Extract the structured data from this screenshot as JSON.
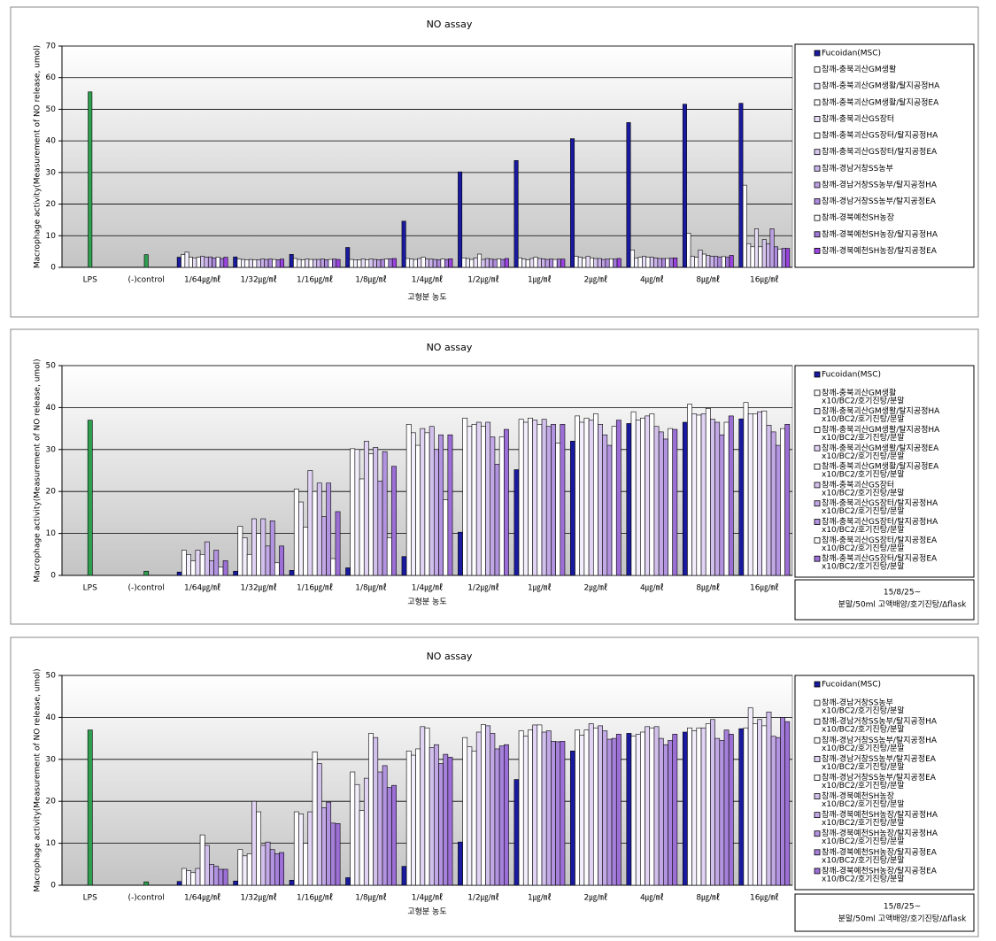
{
  "chart_data": [
    {
      "type": "bar",
      "title": "NO assay",
      "xlabel": "고형분 농도",
      "ylabel": "Macrophage activity(Measurement of NO release, umol)",
      "categories": [
        "LPS",
        "(-)control",
        "1/64㎍/㎖",
        "1/32㎍/㎖",
        "1/16㎍/㎖",
        "1/8㎍/㎖",
        "1/4㎍/㎖",
        "1/2㎍/㎖",
        "1㎍/㎖",
        "2㎍/㎖",
        "4㎍/㎖",
        "8㎍/㎖",
        "16㎍/㎖"
      ],
      "ylim": [
        0,
        70
      ],
      "yticks": [
        0,
        10,
        20,
        30,
        40,
        50,
        60,
        70
      ],
      "grid": true,
      "series": [
        {
          "color": "#2e9e4f",
          "values": [
            55.5,
            4,
            null,
            null,
            null,
            null,
            null,
            null,
            null,
            null,
            null,
            null,
            null
          ]
        },
        {
          "name": "Fucoidan(MSC)",
          "color": "#1a1aa0",
          "values": [
            null,
            null,
            3.2,
            3.3,
            4.1,
            6.3,
            14.6,
            30.2,
            33.8,
            40.7,
            45.8,
            51.6,
            51.9
          ]
        },
        {
          "name": "참깨-충북괴산GM생활",
          "color": "#ffffff",
          "values": [
            null,
            null,
            4,
            2.6,
            2.8,
            2.5,
            2.8,
            3,
            3,
            3.5,
            5.5,
            10.8,
            26
          ]
        },
        {
          "name": "참깨-충북괴산GM생활/탈지공정HA",
          "color": "#f3eefb",
          "values": [
            null,
            null,
            4.8,
            2.5,
            2.5,
            2.4,
            2.6,
            2.8,
            2.6,
            3.2,
            3,
            3.5,
            7.5
          ]
        },
        {
          "name": "참깨-충북괴산GM생활/탈지공정EA",
          "color": "#ffffff",
          "values": [
            null,
            null,
            3.2,
            2.4,
            2.4,
            2.3,
            2.5,
            2.5,
            2.4,
            3,
            3.2,
            3.2,
            6.5
          ]
        },
        {
          "name": "참깨-충북괴산GS장터",
          "color": "#e6dcf5",
          "values": [
            null,
            null,
            3,
            2.5,
            2.6,
            2.6,
            2.8,
            3,
            2.8,
            3.5,
            3.5,
            5.5,
            12.2
          ]
        },
        {
          "name": "참깨-충북괴산GS장터/탈지공정HA",
          "color": "#ffffff",
          "values": [
            null,
            null,
            3.2,
            2.4,
            2.5,
            2.4,
            3.2,
            4.2,
            3.2,
            3,
            3.2,
            4.2,
            6.5
          ]
        },
        {
          "name": "참깨-충북괴산GS장터/탈지공정EA",
          "color": "#d6c6ee",
          "values": [
            null,
            null,
            3.5,
            2.4,
            2.5,
            2.6,
            2.6,
            2.5,
            2.8,
            2.8,
            3.2,
            3.8,
            8.8
          ]
        },
        {
          "name": "참깨-경남거창SS농부",
          "color": "#c9b3e8",
          "values": [
            null,
            null,
            3.2,
            2.6,
            2.5,
            2.5,
            2.6,
            2.8,
            2.7,
            2.8,
            3,
            3.5,
            7.5
          ]
        },
        {
          "name": "참깨-경남거창SS농부/탈지공정HA",
          "color": "#bb9fe2",
          "values": [
            null,
            null,
            3.3,
            2.5,
            2.6,
            2.4,
            2.5,
            2.6,
            2.5,
            2.5,
            2.8,
            3.5,
            12.2
          ]
        },
        {
          "name": "참깨-경남거창SS농부/탈지공정EA",
          "color": "#ad8bdc",
          "values": [
            null,
            null,
            3,
            2.6,
            2.4,
            2.5,
            2.4,
            2.5,
            2.6,
            2.6,
            2.8,
            3.3,
            6.5
          ]
        },
        {
          "name": "참깨-경북예천SH농장",
          "color": "#ffffff",
          "values": [
            null,
            null,
            3.2,
            2.5,
            2.5,
            2.6,
            2.6,
            2.7,
            2.5,
            2.7,
            2.8,
            3.4,
            5.8
          ]
        },
        {
          "name": "참깨-경북예천SH농장/탈지공정HA",
          "color": "#9f77d6",
          "values": [
            null,
            null,
            2.8,
            2.4,
            2.6,
            2.7,
            2.5,
            2.5,
            2.6,
            2.6,
            2.9,
            3.2,
            6
          ]
        },
        {
          "name": "참깨-경북예천SH농장/탈지공정EA",
          "color": "#9a44e0",
          "values": [
            null,
            null,
            3.2,
            2.6,
            2.5,
            2.8,
            2.7,
            2.8,
            2.6,
            2.8,
            3,
            3.8,
            6
          ]
        }
      ]
    },
    {
      "type": "bar",
      "title": "NO assay",
      "xlabel": "고형분 농도",
      "ylabel": "Macrophage activity(Measurement of NO release, umol)",
      "note": [
        "15/8/25~",
        "분말/50ml 고액배양/호기진탕/Δflask"
      ],
      "categories": [
        "LPS",
        "(-)control",
        "1/64㎍/㎖",
        "1/32㎍/㎖",
        "1/16㎍/㎖",
        "1/8㎍/㎖",
        "1/4㎍/㎖",
        "1/2㎍/㎖",
        "1㎍/㎖",
        "2㎍/㎖",
        "4㎍/㎖",
        "8㎍/㎖",
        "16㎍/㎖"
      ],
      "ylim": [
        0,
        50
      ],
      "yticks": [
        0,
        10,
        20,
        30,
        40,
        50
      ],
      "grid": true,
      "series": [
        {
          "color": "#2e9e4f",
          "values": [
            37,
            1,
            null,
            null,
            null,
            null,
            null,
            null,
            null,
            null,
            null,
            null,
            null
          ]
        },
        {
          "name": "Fucoidan(MSC)",
          "color": "#1a1aa0",
          "values": [
            null,
            null,
            0.8,
            1,
            1.2,
            1.8,
            4.5,
            10.3,
            25.2,
            32,
            36.2,
            36.5,
            37.3
          ]
        },
        {
          "name": "참깨-충북괴산GM생활",
          "suffix": "x10/BC2/호기진탕/분말",
          "color": "#ffffff",
          "values": [
            null,
            null,
            6,
            11.7,
            20.6,
            30.2,
            36,
            37.5,
            37.2,
            38,
            39,
            40.8,
            41.2
          ]
        },
        {
          "name": "참깨-충북괴산GM생활/탈지공정HA",
          "suffix": "x10/BC2/호기진탕/분말",
          "color": "#f3eefb",
          "values": [
            null,
            null,
            5,
            9,
            17.5,
            30,
            34,
            35.5,
            36.5,
            36.5,
            37,
            38.5,
            38.5
          ]
        },
        {
          "name": "참깨-충북괴산GM생활/탈지공정HA",
          "suffix": "x10/BC2/호기진탕/분말",
          "color": "#ffffff",
          "values": [
            null,
            null,
            3.5,
            5,
            11.5,
            23,
            31,
            36,
            37.5,
            37.5,
            37.5,
            38.2,
            38.5
          ]
        },
        {
          "name": "참깨-충북괴산GM생활/탈지공정EA",
          "suffix": "x10/BC2/호기진탕/분말",
          "color": "#e0d3f3",
          "values": [
            null,
            null,
            6,
            13.5,
            25,
            32,
            35,
            36.5,
            37,
            37,
            38,
            38.5,
            39
          ]
        },
        {
          "name": "참깨-충북괴산GM생활/탈지공정EA",
          "suffix": "x10/BC2/호기진탕/분말",
          "color": "#ffffff",
          "values": [
            null,
            null,
            5,
            10,
            20,
            29,
            34,
            35.5,
            36,
            38.5,
            38.5,
            39.8,
            39.2
          ]
        },
        {
          "name": "참깨-충북괴산GS장터",
          "suffix": "x10/BC2/호기진탕/분말",
          "color": "#d2c0ec",
          "values": [
            null,
            null,
            8,
            13.5,
            22,
            30.5,
            35.5,
            36.5,
            37.2,
            36,
            35.5,
            37.2,
            35.8
          ]
        },
        {
          "name": "참깨-충북괴산GS장터/탈지공정HA",
          "suffix": "x10/BC2/호기진탕/분말",
          "color": "#c2a9e6",
          "values": [
            null,
            null,
            3.5,
            7,
            14,
            22.5,
            30,
            33,
            35.5,
            33.5,
            34.2,
            36.5,
            34.2
          ]
        },
        {
          "name": "참깨-충북괴산GS장터/탈지공정HA",
          "suffix": "x10/BC2/호기진탕/분말",
          "color": "#b293df",
          "values": [
            null,
            null,
            6,
            13,
            22,
            29.5,
            33.5,
            26.5,
            36,
            31,
            32.5,
            33.5,
            31
          ]
        },
        {
          "name": "참깨-충북괴산GS장터/탈지공정EA",
          "suffix": "x10/BC2/호기진탕/분말",
          "color": "#ffffff",
          "values": [
            null,
            null,
            2,
            3,
            4,
            9,
            18,
            33,
            31.5,
            35.5,
            35,
            36.5,
            35
          ]
        },
        {
          "name": "참깨-충북괴산GS장터/탈지공정EA",
          "suffix": "x10/BC2/호기진탕/분말",
          "color": "#9c6fd6",
          "values": [
            null,
            null,
            3.5,
            7,
            15.2,
            26,
            33.5,
            34.8,
            36,
            37,
            34.8,
            38,
            36
          ]
        }
      ]
    },
    {
      "type": "bar",
      "title": "NO assay",
      "xlabel": "고형분 농도",
      "ylabel": "Macrophage activity(Measurement of NO release, umol)",
      "note": [
        "15/8/25~",
        "분말/50ml 고액배양/호기진탕/Δflask"
      ],
      "categories": [
        "LPS",
        "(-)control",
        "1/64㎍/㎖",
        "1/32㎍/㎖",
        "1/16㎍/㎖",
        "1/8㎍/㎖",
        "1/4㎍/㎖",
        "1/2㎍/㎖",
        "1㎍/㎖",
        "2㎍/㎖",
        "4㎍/㎖",
        "8㎍/㎖",
        "16㎍/㎖"
      ],
      "ylim": [
        0,
        50
      ],
      "yticks": [
        0,
        10,
        20,
        30,
        40,
        50
      ],
      "grid": true,
      "series": [
        {
          "color": "#2e9e4f",
          "values": [
            37,
            0.8,
            null,
            null,
            null,
            null,
            null,
            null,
            null,
            null,
            null,
            null,
            null
          ]
        },
        {
          "name": "Fucoidan(MSC)",
          "color": "#1a1aa0",
          "values": [
            null,
            null,
            0.9,
            1,
            1.2,
            1.8,
            4.5,
            10.3,
            25.2,
            32,
            36.2,
            36.5,
            37.3
          ]
        },
        {
          "name": "참깨-경남거창SS농부",
          "suffix": "x10/BC2/호기진탕/분말",
          "color": "#ffffff",
          "values": [
            null,
            null,
            4,
            8.5,
            17.5,
            27,
            32,
            35.2,
            36.8,
            37,
            35.5,
            37.5,
            37.5
          ]
        },
        {
          "name": "참깨-경남거창SS농부/탈지공정HA",
          "suffix": "x10/BC2/호기진탕/분말",
          "color": "#f3eefb",
          "values": [
            null,
            null,
            3.5,
            7,
            17,
            24,
            31,
            33,
            35.5,
            35.8,
            36,
            36.8,
            42.3
          ]
        },
        {
          "name": "참깨-경남거창SS농부/탈지공정HA",
          "suffix": "x10/BC2/호기진탕/분말",
          "color": "#ffffff",
          "values": [
            null,
            null,
            3,
            7.5,
            10,
            17.8,
            32.5,
            32,
            37,
            37,
            36.5,
            37.5,
            38.5
          ]
        },
        {
          "name": "참깨-경남거창SS농부/탈지공정EA",
          "suffix": "x10/BC2/호기진탕/분말",
          "color": "#e0d3f3",
          "values": [
            null,
            null,
            4,
            20,
            17.5,
            25.5,
            37.8,
            36.5,
            38.2,
            38.5,
            37.8,
            37.5,
            39.5
          ]
        },
        {
          "name": "참깨-경남거창SS농부/탈지공정EA",
          "suffix": "x10/BC2/호기진탕/분말",
          "color": "#ffffff",
          "values": [
            null,
            null,
            12,
            17.5,
            31.8,
            36.2,
            37.5,
            38.3,
            38.2,
            37.5,
            37.5,
            38.5,
            38
          ]
        },
        {
          "name": "참깨-경북예천SH농장",
          "suffix": "x10/BC2/호기진탕/분말",
          "color": "#d2c0ec",
          "values": [
            null,
            null,
            9.5,
            9.5,
            29,
            35.2,
            32.8,
            38,
            36.5,
            38,
            37.8,
            39.5,
            41.3
          ]
        },
        {
          "name": "참깨-경북예천SH농장/탈지공정HA",
          "suffix": "x10/BC2/호기진탕/분말",
          "color": "#c2a9e6",
          "values": [
            null,
            null,
            5,
            10.3,
            18.5,
            27,
            33.5,
            36.2,
            36.8,
            36.8,
            35,
            35,
            35.5
          ]
        },
        {
          "name": "참깨-경북예천SH농장/탈지공정HA",
          "suffix": "x10/BC2/호기진탕/분말",
          "color": "#b293df",
          "values": [
            null,
            null,
            4.5,
            8.5,
            19.8,
            28.5,
            29,
            32.5,
            34.3,
            34.8,
            33.5,
            34.5,
            35.2
          ]
        },
        {
          "name": "참깨-경북예천SH농장/탈지공정EA",
          "suffix": "x10/BC2/호기진탕/분말",
          "color": "#a681da",
          "values": [
            null,
            null,
            3.8,
            7.5,
            14.8,
            23.3,
            31.2,
            33.2,
            34.2,
            35,
            34.5,
            37,
            40
          ]
        },
        {
          "name": "참깨-경북예천SH농장/탈지공정EA",
          "suffix": "x10/BC2/호기진탕/분말",
          "color": "#9c6fd6",
          "values": [
            null,
            null,
            3.8,
            7.8,
            14.7,
            23.8,
            30.5,
            33.5,
            34.3,
            36,
            36,
            36,
            39
          ]
        }
      ]
    }
  ]
}
